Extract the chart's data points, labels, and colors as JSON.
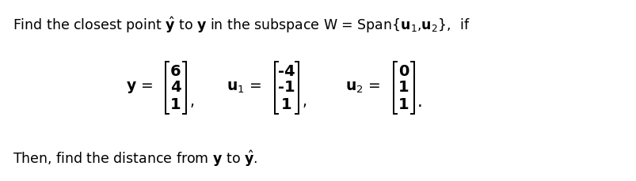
{
  "y_vec": [
    "6",
    "4",
    "1"
  ],
  "u1_vec": [
    "-4",
    "-1",
    "1"
  ],
  "u2_vec": [
    "0",
    "1",
    "1"
  ],
  "bg_color": "#ffffff",
  "text_color": "#000000",
  "font_size_text": 12.5,
  "font_size_matrix": 14,
  "font_size_label": 13.5
}
